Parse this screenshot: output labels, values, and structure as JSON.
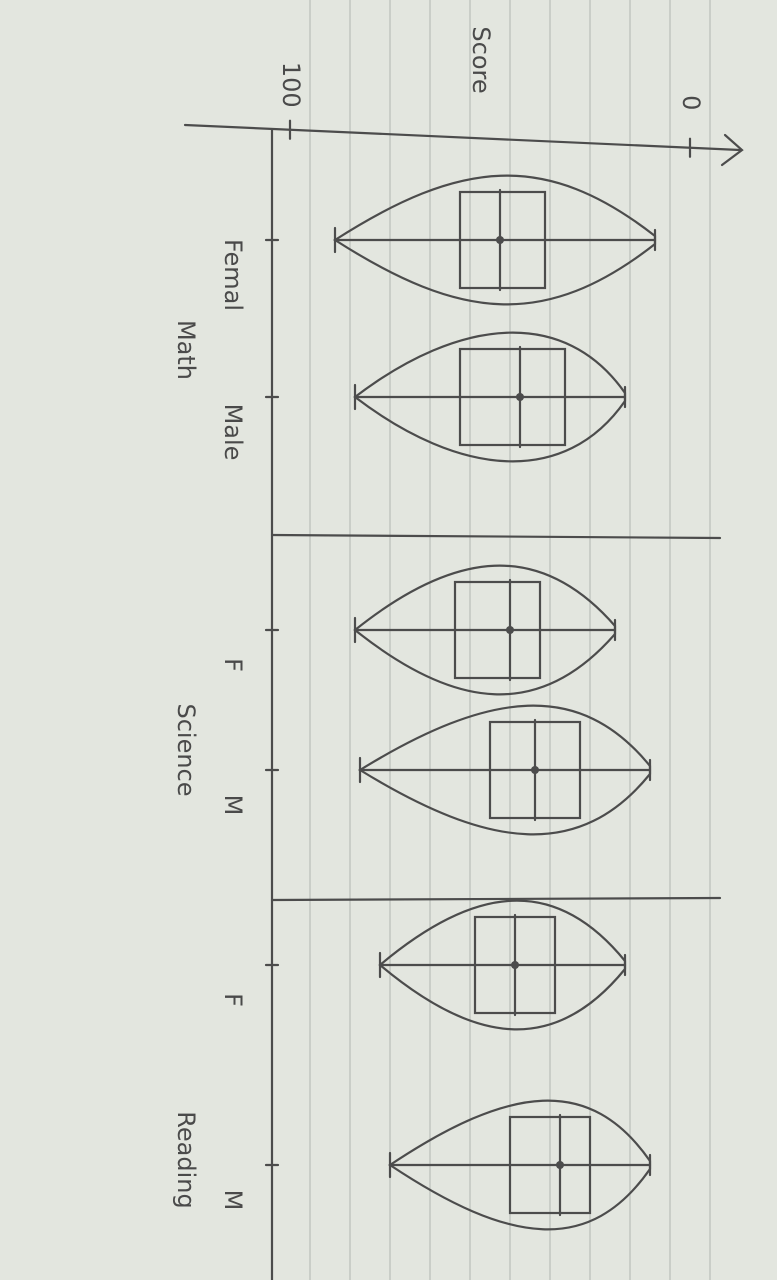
{
  "chart_data": {
    "type": "violin",
    "y_label": "Score",
    "ylim": [
      0,
      100
    ],
    "yticks": [
      0,
      100
    ],
    "groups": [
      {
        "name": "Math",
        "boxes": [
          {
            "label": "Femal",
            "min": 8.75,
            "q1": 36.25,
            "median": 47.5,
            "q3": 57.5,
            "max": 88.75
          },
          {
            "label": "Male",
            "min": 16.25,
            "q1": 31.25,
            "median": 42.5,
            "q3": 57.5,
            "max": 83.75
          }
        ]
      },
      {
        "name": "Science",
        "boxes": [
          {
            "label": "F",
            "min": 18.75,
            "q1": 37.5,
            "median": 45,
            "q3": 58.75,
            "max": 83.75
          },
          {
            "label": "M",
            "min": 10,
            "q1": 27.5,
            "median": 38.75,
            "q3": 50,
            "max": 82.5
          }
        ]
      },
      {
        "name": "Reading",
        "boxes": [
          {
            "label": "F",
            "min": 16.25,
            "q1": 33.75,
            "median": 43.75,
            "q3": 53.75,
            "max": 77.5
          },
          {
            "label": "M",
            "min": 10,
            "q1": 25,
            "median": 32.5,
            "q3": 45,
            "max": 75
          }
        ]
      }
    ]
  }
}
